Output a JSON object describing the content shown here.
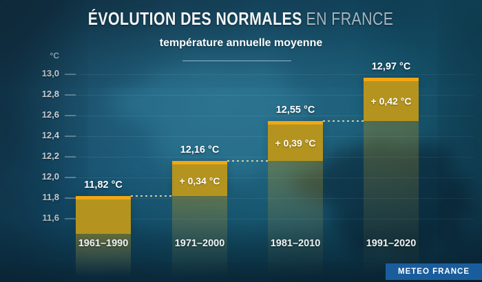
{
  "header": {
    "title_main": "ÉVOLUTION DES NORMALES",
    "title_sub": "EN FRANCE",
    "subtitle": "température annuelle moyenne"
  },
  "axis": {
    "unit": "°C"
  },
  "chart_data": {
    "type": "bar",
    "title": "Évolution des normales en France",
    "subtitle": "température annuelle moyenne",
    "categories": [
      "1961–1990",
      "1971–2000",
      "1981–2010",
      "1991–2020"
    ],
    "values": [
      11.82,
      12.16,
      12.55,
      12.97
    ],
    "value_labels": [
      "11,82 °C",
      "12,16 °C",
      "12,55 °C",
      "12,97 °C"
    ],
    "deltas": [
      null,
      0.34,
      0.39,
      0.42
    ],
    "delta_labels": [
      "",
      "+ 0,34 °C",
      "+ 0,39 °C",
      "+ 0,42 °C"
    ],
    "ylabel": "°C",
    "ylim": [
      11.45,
      13.05
    ],
    "yticks": [
      13.0,
      12.8,
      12.6,
      12.4,
      12.2,
      12.0,
      11.8,
      11.6
    ],
    "ytick_labels": [
      "13,0",
      "12,8",
      "12,6",
      "12,4",
      "12,2",
      "12,0",
      "11,8",
      "11,6"
    ],
    "grid": true,
    "legend": false,
    "bar_color": "#b4941f",
    "bar_cap_color": "#f2a712",
    "dotted_connector_color": "#e4dbad"
  },
  "footer": {
    "brand": "METEO FRANCE",
    "brand_bg": "#1a5d9d"
  },
  "colors": {
    "background_teal": "#155872",
    "background_dark": "#0e3950",
    "title_white": "#f1f5f7",
    "title_gray": "#a7b5bf",
    "axis_text": "#e9eff2"
  }
}
